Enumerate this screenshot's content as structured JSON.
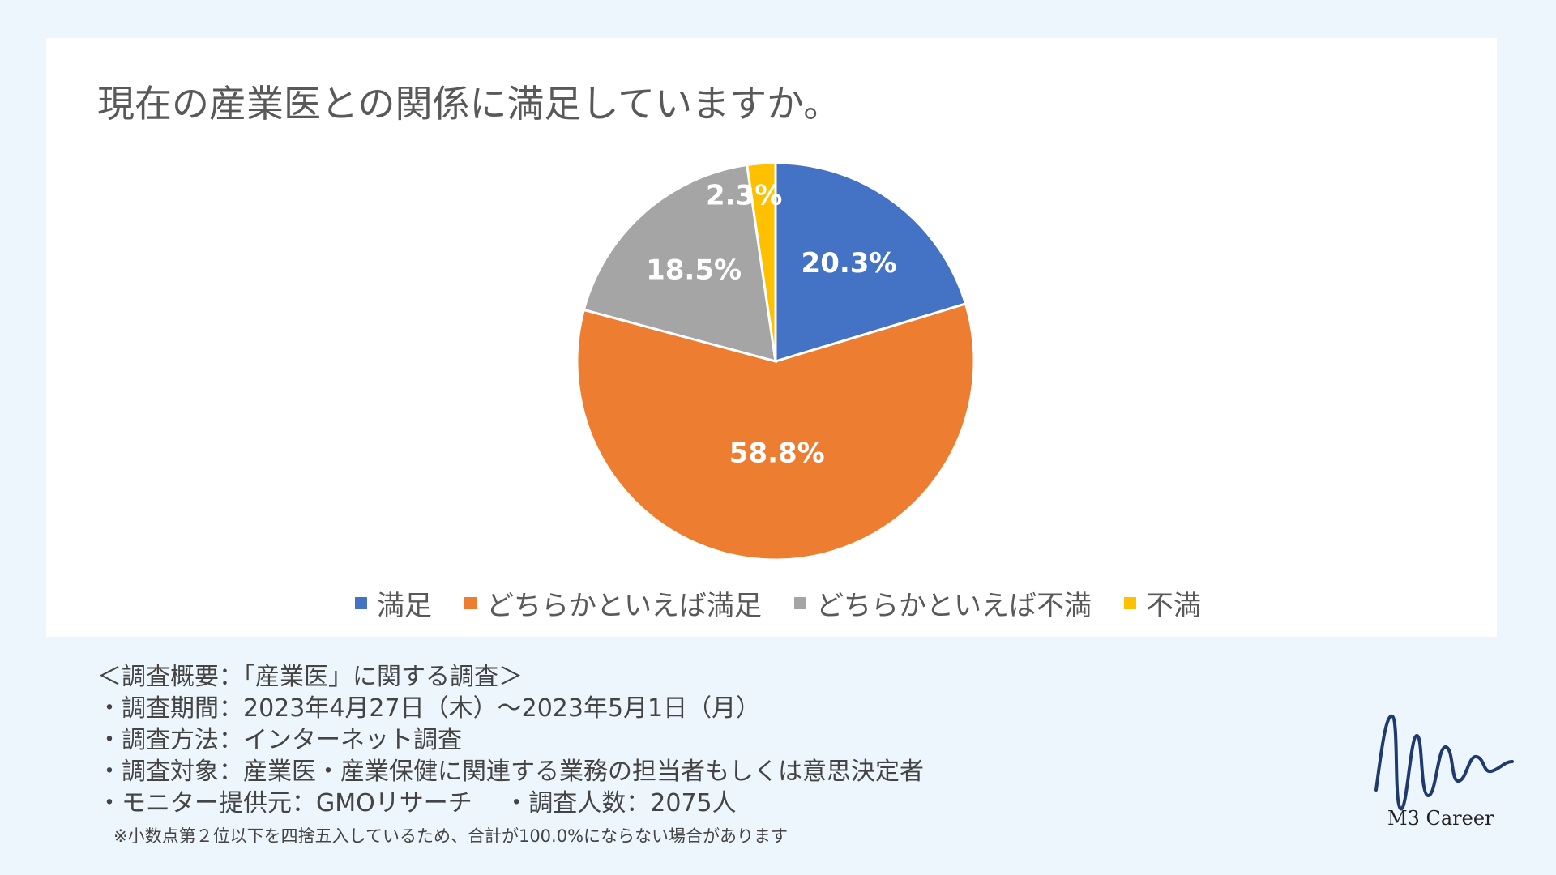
{
  "title": "現在の産業医との関係に満足していますか。",
  "chart_data": {
    "type": "pie",
    "title": "現在の産業医との関係に満足していますか。",
    "categories": [
      "満足",
      "どちらかといえば満足",
      "どちらかといえば不満",
      "不満"
    ],
    "values": [
      20.3,
      58.8,
      18.5,
      2.3
    ],
    "data_labels": [
      "20.3%",
      "58.8%",
      "18.5%",
      "2.3%"
    ],
    "colors": [
      "#4472c4",
      "#ed7d31",
      "#a5a5a5",
      "#ffc000"
    ],
    "start_angle_deg": 0,
    "direction": "clockwise",
    "legend_position": "bottom"
  },
  "legend": [
    {
      "label": "満足",
      "color": "#4472c4"
    },
    {
      "label": "どちらかといえば満足",
      "color": "#ed7d31"
    },
    {
      "label": "どちらかといえば不満",
      "color": "#a5a5a5"
    },
    {
      "label": "不満",
      "color": "#ffc000"
    }
  ],
  "survey": {
    "heading": "＜調査概要：「産業医」に関する調査＞",
    "period": "・調査期間：2023年4月27日（木）〜2023年5月1日（月）",
    "method": "・調査方法：インターネット調査",
    "target": "・調査対象：産業医・産業保健に関連する業務の担当者もしくは意思決定者",
    "provider": "・モニター提供元：GMOリサーチ　 ・調査人数：2075人",
    "footnote": "※小数点第２位以下を四捨五入しているため、合計が100.0%にならない場合があります"
  },
  "brand": {
    "name": "M3 Career",
    "logo_icon": "wave-signature-logo",
    "logo_color": "#1f3a6e"
  }
}
